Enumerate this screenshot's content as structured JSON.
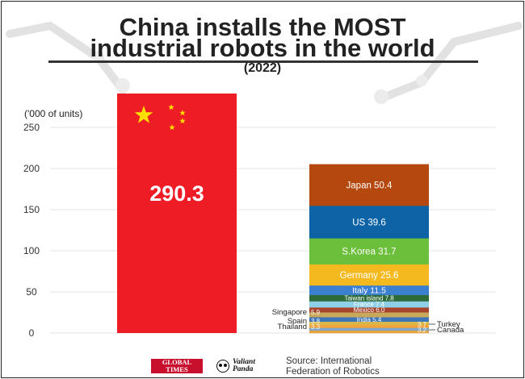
{
  "title_line1": "China installs the MOST",
  "title_line2": "industrial robots in the world",
  "subtitle": "(2022)",
  "footer": {
    "source_line1": "Source: International",
    "source_line2": "Federation of Robotics",
    "logo_global_times": [
      "GLOBAL",
      "TIMES"
    ],
    "logo_valiant_panda": [
      "Valiant",
      "Panda"
    ]
  },
  "colors": {
    "china": "#ee1c25",
    "star": "#ffde00",
    "grid": "#e6e6e6",
    "axis_text": "#333333"
  },
  "chart_data": {
    "type": "bar",
    "unit_label": "('000 of units)",
    "ylim": [
      0,
      250
    ],
    "yticks": [
      0,
      50,
      100,
      150,
      200,
      250
    ],
    "grid": true,
    "china": {
      "label": "290.3",
      "value": 290.3,
      "color": "#ee1c25"
    },
    "stack": [
      {
        "name": "Canada",
        "value": 3.2,
        "label": "3.2",
        "color": "#e6a23c",
        "outside": true
      },
      {
        "name": "Thailand",
        "value": 3.3,
        "label": "3.3",
        "color": "#7fa6c8",
        "outside": true
      },
      {
        "name": "Turkey",
        "value": 3.7,
        "label": "3.7",
        "color": "#f2a33a",
        "outside": true
      },
      {
        "name": "Spain",
        "value": 3.8,
        "label": "3.8",
        "color": "#d9b84a",
        "outside": true
      },
      {
        "name": "India",
        "value": 5.4,
        "label": "India 5.4",
        "color": "#3c74b8",
        "outside": false
      },
      {
        "name": "Singapore",
        "value": 5.9,
        "label": "5.9",
        "color": "#c8a85a",
        "outside": true
      },
      {
        "name": "Mexico",
        "value": 6.0,
        "label": "Mexico 6.0",
        "color": "#a8432c",
        "outside": false
      },
      {
        "name": "France",
        "value": 7.4,
        "label": "France 7.4",
        "color": "#8fd0e8",
        "outside": false
      },
      {
        "name": "Taiwan island",
        "value": 7.8,
        "label": "Taiwan island 7.8",
        "color": "#2e6b3a",
        "outside": false
      },
      {
        "name": "Italy",
        "value": 11.5,
        "label": "Italy 11.5",
        "color": "#3b7fd1",
        "outside": false
      },
      {
        "name": "Germany",
        "value": 25.6,
        "label": "Germany 25.6",
        "color": "#f5b920",
        "outside": false
      },
      {
        "name": "S.Korea",
        "value": 31.7,
        "label": "S.Korea 31.7",
        "color": "#6cbf3a",
        "outside": false
      },
      {
        "name": "US",
        "value": 39.6,
        "label": "US 39.6",
        "color": "#0d63a5",
        "outside": false
      },
      {
        "name": "Japan",
        "value": 50.4,
        "label": "Japan 50.4",
        "color": "#b5480f",
        "outside": false
      }
    ]
  }
}
